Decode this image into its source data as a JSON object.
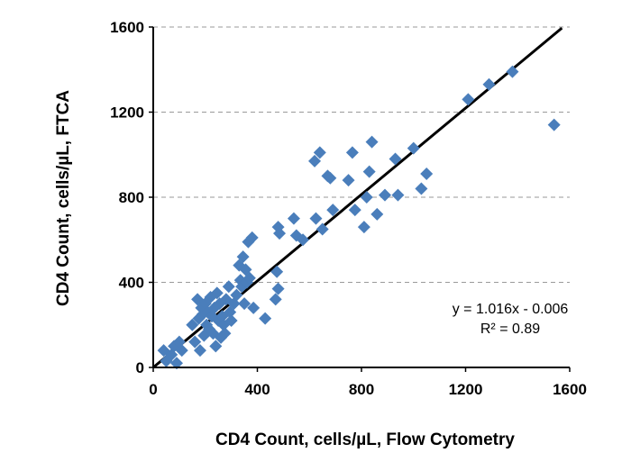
{
  "chart_data": {
    "type": "scatter",
    "title": "",
    "xlabel": "CD4 Count, cells/µL, Flow Cytometry",
    "ylabel": "CD4 Count, cells/µL, FTCA",
    "xlim": [
      0,
      1600
    ],
    "ylim": [
      0,
      1600
    ],
    "xticks": [
      "0",
      "400",
      "800",
      "1200",
      "1600"
    ],
    "yticks": [
      "0",
      "400",
      "800",
      "1200",
      "1600"
    ],
    "grid": "horizontal dashed",
    "marker_color": "#4A7EBB",
    "trendline": {
      "slope": 1.016,
      "intercept": -0.006,
      "color": "#000000"
    },
    "annotation": {
      "equation": "y = 1.016x - 0.006",
      "r2": "R² = 0.89"
    },
    "points": [
      [
        40,
        80
      ],
      [
        50,
        30
      ],
      [
        70,
        60
      ],
      [
        80,
        100
      ],
      [
        90,
        20
      ],
      [
        100,
        120
      ],
      [
        110,
        80
      ],
      [
        150,
        200
      ],
      [
        160,
        120
      ],
      [
        170,
        320
      ],
      [
        175,
        230
      ],
      [
        180,
        80
      ],
      [
        185,
        280
      ],
      [
        190,
        250
      ],
      [
        195,
        150
      ],
      [
        200,
        300
      ],
      [
        205,
        200
      ],
      [
        210,
        260
      ],
      [
        215,
        180
      ],
      [
        220,
        330
      ],
      [
        225,
        240
      ],
      [
        230,
        160
      ],
      [
        235,
        280
      ],
      [
        240,
        100
      ],
      [
        245,
        350
      ],
      [
        250,
        220
      ],
      [
        255,
        300
      ],
      [
        260,
        140
      ],
      [
        265,
        240
      ],
      [
        270,
        200
      ],
      [
        275,
        160
      ],
      [
        280,
        320
      ],
      [
        290,
        380
      ],
      [
        295,
        260
      ],
      [
        300,
        220
      ],
      [
        310,
        300
      ],
      [
        320,
        340
      ],
      [
        330,
        480
      ],
      [
        335,
        410
      ],
      [
        340,
        380
      ],
      [
        345,
        520
      ],
      [
        350,
        300
      ],
      [
        355,
        460
      ],
      [
        360,
        400
      ],
      [
        365,
        590
      ],
      [
        370,
        420
      ],
      [
        380,
        610
      ],
      [
        385,
        280
      ],
      [
        430,
        230
      ],
      [
        470,
        320
      ],
      [
        475,
        450
      ],
      [
        480,
        660
      ],
      [
        480,
        370
      ],
      [
        485,
        630
      ],
      [
        540,
        700
      ],
      [
        550,
        620
      ],
      [
        575,
        600
      ],
      [
        620,
        970
      ],
      [
        625,
        700
      ],
      [
        640,
        1010
      ],
      [
        650,
        650
      ],
      [
        670,
        900
      ],
      [
        680,
        890
      ],
      [
        690,
        740
      ],
      [
        750,
        880
      ],
      [
        765,
        1010
      ],
      [
        775,
        740
      ],
      [
        810,
        660
      ],
      [
        820,
        800
      ],
      [
        830,
        920
      ],
      [
        840,
        1060
      ],
      [
        860,
        720
      ],
      [
        890,
        810
      ],
      [
        930,
        980
      ],
      [
        940,
        810
      ],
      [
        1000,
        1030
      ],
      [
        1030,
        840
      ],
      [
        1050,
        910
      ],
      [
        1210,
        1260
      ],
      [
        1290,
        1330
      ],
      [
        1380,
        1390
      ],
      [
        1540,
        1140
      ]
    ]
  }
}
